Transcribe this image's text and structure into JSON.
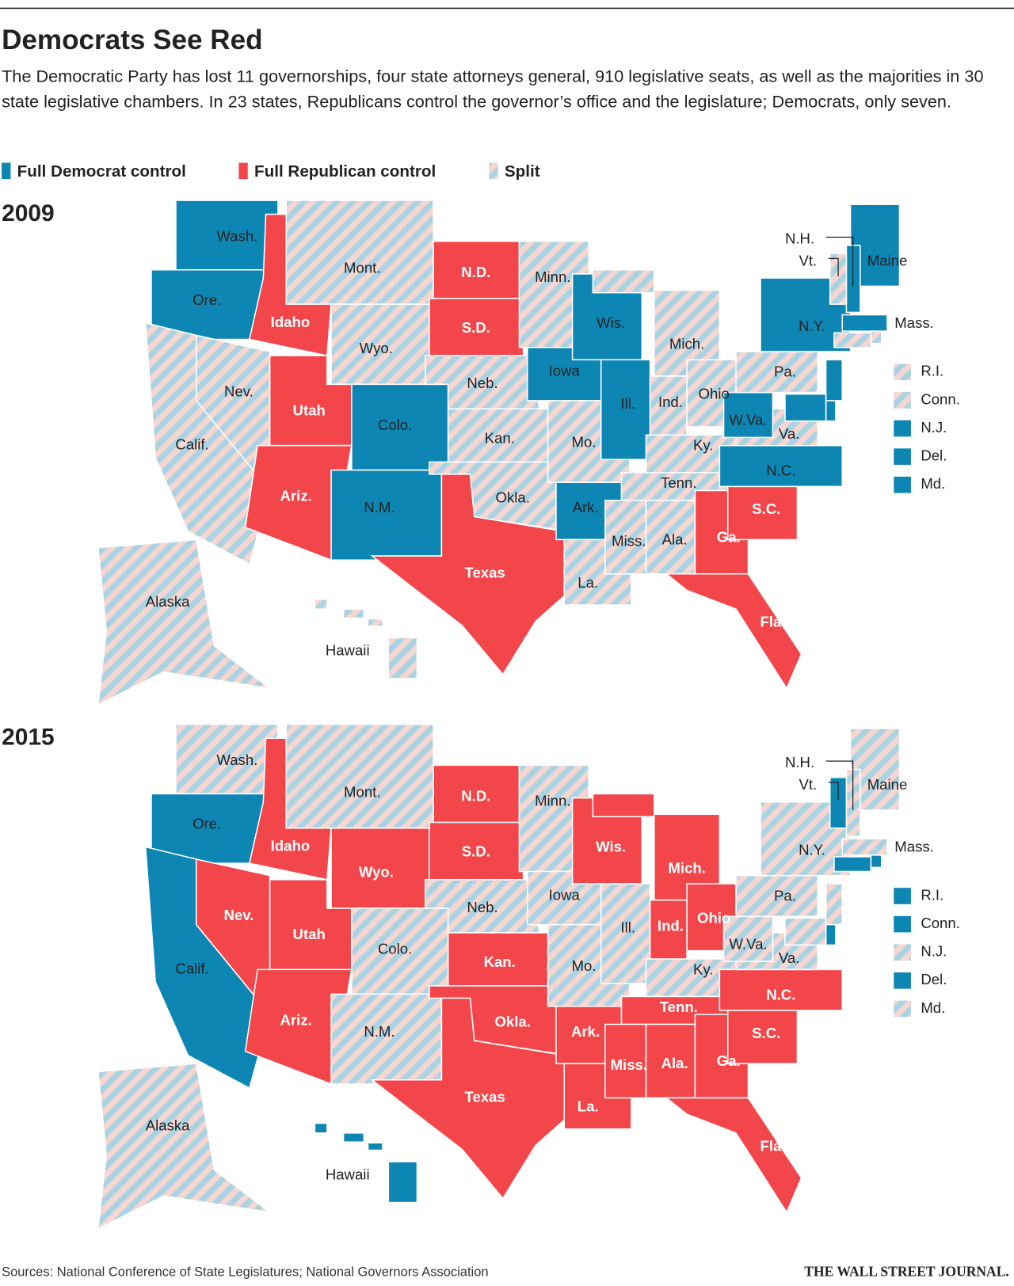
{
  "header": {
    "title": "Democrats See Red",
    "subtitle": "The Democratic Party has lost 11 governorships, four state attorneys general, 910 legislative seats, as well as the majorities in 30 state legislative chambers. In 23 states, Republicans control the governor’s office and the legislature; Democrats, only seven."
  },
  "legend": [
    {
      "label": "Full Democrat control",
      "color": "#0e86b4"
    },
    {
      "label": "Full Republican control",
      "color": "#f2464a"
    },
    {
      "label": "Split",
      "color": "stripes"
    }
  ],
  "maps": [
    {
      "year": "2009",
      "states": [
        {
          "label": "Wash.",
          "control": 0
        },
        {
          "label": "Ore.",
          "control": 0
        },
        {
          "label": "Calif.",
          "control": 2
        },
        {
          "label": "Nev.",
          "control": 2
        },
        {
          "label": "Idaho",
          "control": 1
        },
        {
          "label": "Mont.",
          "control": 2
        },
        {
          "label": "Wyo.",
          "control": 2
        },
        {
          "label": "Utah",
          "control": 1
        },
        {
          "label": "Colo.",
          "control": 0
        },
        {
          "label": "Ariz.",
          "control": 1
        },
        {
          "label": "N.M.",
          "control": 0
        },
        {
          "label": "N.D.",
          "control": 1
        },
        {
          "label": "S.D.",
          "control": 1
        },
        {
          "label": "Neb.",
          "control": 2
        },
        {
          "label": "Kan.",
          "control": 2
        },
        {
          "label": "Okla.",
          "control": 2
        },
        {
          "label": "Texas",
          "control": 1
        },
        {
          "label": "Minn.",
          "control": 2
        },
        {
          "label": "Iowa",
          "control": 0
        },
        {
          "label": "Mo.",
          "control": 2
        },
        {
          "label": "Ark.",
          "control": 0
        },
        {
          "label": "La.",
          "control": 2
        },
        {
          "label": "Wis.",
          "control": 0
        },
        {
          "label": "Ill.",
          "control": 0
        },
        {
          "label": "Mich.",
          "control": 2
        },
        {
          "label": "Ind.",
          "control": 2
        },
        {
          "label": "Ohio",
          "control": 2
        },
        {
          "label": "Ky.",
          "control": 2
        },
        {
          "label": "Tenn.",
          "control": 2
        },
        {
          "label": "Miss.",
          "control": 2
        },
        {
          "label": "Ala.",
          "control": 2
        },
        {
          "label": "Ga.",
          "control": 1
        },
        {
          "label": "Fla.",
          "control": 1
        },
        {
          "label": "S.C.",
          "control": 1
        },
        {
          "label": "N.C.",
          "control": 0
        },
        {
          "label": "Va.",
          "control": 2
        },
        {
          "label": "W.Va.",
          "control": 0
        },
        {
          "label": "Pa.",
          "control": 2
        },
        {
          "label": "N.Y.",
          "control": 0
        },
        {
          "label": "Maine",
          "control": 0
        },
        {
          "label": "Mass.",
          "control": 0
        },
        {
          "label": "N.H.",
          "control": 0
        },
        {
          "label": "Vt.",
          "control": 2
        },
        {
          "label": "Alaska",
          "control": 2
        },
        {
          "label": "Hawaii",
          "control": 2
        }
      ],
      "northeast": [
        {
          "label": "R.I.",
          "control": 2
        },
        {
          "label": "Conn.",
          "control": 2
        },
        {
          "label": "N.J.",
          "control": 0
        },
        {
          "label": "Del.",
          "control": 0
        },
        {
          "label": "Md.",
          "control": 0
        }
      ]
    },
    {
      "year": "2015",
      "states": [
        {
          "label": "Wash.",
          "control": 2
        },
        {
          "label": "Ore.",
          "control": 0
        },
        {
          "label": "Calif.",
          "control": 0
        },
        {
          "label": "Nev.",
          "control": 1
        },
        {
          "label": "Idaho",
          "control": 1
        },
        {
          "label": "Mont.",
          "control": 2
        },
        {
          "label": "Wyo.",
          "control": 1
        },
        {
          "label": "Utah",
          "control": 1
        },
        {
          "label": "Colo.",
          "control": 2
        },
        {
          "label": "Ariz.",
          "control": 1
        },
        {
          "label": "N.M.",
          "control": 2
        },
        {
          "label": "N.D.",
          "control": 1
        },
        {
          "label": "S.D.",
          "control": 1
        },
        {
          "label": "Neb.",
          "control": 2
        },
        {
          "label": "Kan.",
          "control": 1
        },
        {
          "label": "Okla.",
          "control": 1
        },
        {
          "label": "Texas",
          "control": 1
        },
        {
          "label": "Minn.",
          "control": 2
        },
        {
          "label": "Iowa",
          "control": 2
        },
        {
          "label": "Mo.",
          "control": 2
        },
        {
          "label": "Ark.",
          "control": 1
        },
        {
          "label": "La.",
          "control": 1
        },
        {
          "label": "Wis.",
          "control": 1
        },
        {
          "label": "Ill.",
          "control": 2
        },
        {
          "label": "Mich.",
          "control": 1
        },
        {
          "label": "Ind.",
          "control": 1
        },
        {
          "label": "Ohio",
          "control": 1
        },
        {
          "label": "Ky.",
          "control": 2
        },
        {
          "label": "Tenn.",
          "control": 1
        },
        {
          "label": "Miss.",
          "control": 1
        },
        {
          "label": "Ala.",
          "control": 1
        },
        {
          "label": "Ga.",
          "control": 1
        },
        {
          "label": "Fla.",
          "control": 1
        },
        {
          "label": "S.C.",
          "control": 1
        },
        {
          "label": "N.C.",
          "control": 1
        },
        {
          "label": "Va.",
          "control": 2
        },
        {
          "label": "W.Va.",
          "control": 2
        },
        {
          "label": "Pa.",
          "control": 2
        },
        {
          "label": "N.Y.",
          "control": 2
        },
        {
          "label": "Maine",
          "control": 2
        },
        {
          "label": "Mass.",
          "control": 2
        },
        {
          "label": "N.H.",
          "control": 2
        },
        {
          "label": "Vt.",
          "control": 0
        },
        {
          "label": "Alaska",
          "control": 2
        },
        {
          "label": "Hawaii",
          "control": 0
        }
      ],
      "northeast": [
        {
          "label": "R.I.",
          "control": 0
        },
        {
          "label": "Conn.",
          "control": 0
        },
        {
          "label": "N.J.",
          "control": 2
        },
        {
          "label": "Del.",
          "control": 0
        },
        {
          "label": "Md.",
          "control": 2
        }
      ]
    }
  ],
  "footer": {
    "source": "Sources: National Conference of State Legislatures; National Governors Association",
    "publisher": "THE WALL STREET JOURNAL."
  }
}
